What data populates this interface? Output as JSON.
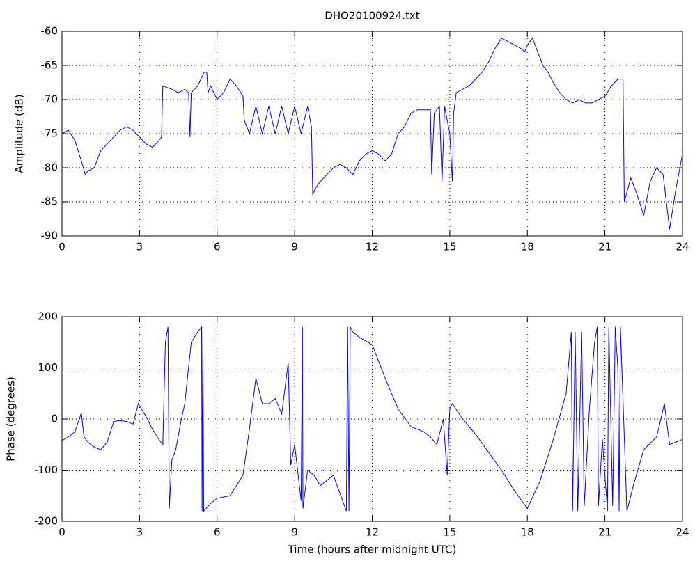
{
  "chart_data": [
    {
      "type": "line",
      "title": "DHO20100924.txt",
      "y_label": "Amplitude (dB)",
      "x": [
        0,
        0.25,
        0.5,
        0.75,
        0.9,
        1.0,
        1.25,
        1.5,
        1.75,
        2.0,
        2.25,
        2.5,
        2.75,
        3.0,
        3.25,
        3.5,
        3.75,
        3.85,
        3.9,
        4.25,
        4.5,
        4.75,
        4.9,
        4.95,
        5.0,
        5.25,
        5.5,
        5.6,
        5.65,
        5.75,
        6.0,
        6.25,
        6.5,
        6.75,
        7.0,
        7.05,
        7.25,
        7.5,
        7.75,
        8.0,
        8.25,
        8.5,
        8.75,
        9.0,
        9.25,
        9.5,
        9.65,
        9.7,
        9.8,
        10,
        10.25,
        10.5,
        10.75,
        11,
        11.25,
        11.5,
        11.75,
        12,
        12.25,
        12.5,
        12.75,
        13,
        13.25,
        13.5,
        13.75,
        14,
        14.25,
        14.3,
        14.4,
        14.6,
        14.7,
        14.8,
        15,
        15.1,
        15.15,
        15.25,
        15.5,
        15.75,
        16,
        16.25,
        16.5,
        16.75,
        17,
        17.25,
        17.5,
        17.75,
        17.9,
        18,
        18.2,
        18.4,
        18.6,
        18.8,
        19,
        19.25,
        19.5,
        19.75,
        20,
        20.25,
        20.5,
        20.75,
        21,
        21.25,
        21.5,
        21.7,
        21.75,
        22,
        22.25,
        22.5,
        22.75,
        23,
        23.25,
        23.5,
        23.75,
        24
      ],
      "series": [
        {
          "color": "#0000ff",
          "values": [
            -75,
            -74.5,
            -76,
            -79,
            -81,
            -80.5,
            -80,
            -77.5,
            -76.5,
            -75.5,
            -74.5,
            -74,
            -74.5,
            -75.5,
            -76.5,
            -77,
            -76,
            -75.5,
            -68,
            -68.5,
            -69,
            -68.5,
            -69,
            -75.5,
            -69,
            -68,
            -66,
            -66,
            -69,
            -68,
            -70,
            -69,
            -67,
            -68,
            -69.5,
            -73,
            -75,
            -71,
            -75,
            -71,
            -75,
            -71,
            -75,
            -71,
            -75,
            -71,
            -74,
            -84,
            -83,
            -82,
            -81,
            -80,
            -79.5,
            -80,
            -81,
            -79,
            -78,
            -77.5,
            -78,
            -79,
            -78,
            -75,
            -74,
            -72,
            -71.5,
            -71.5,
            -71.5,
            -81,
            -72,
            -71,
            -82,
            -71,
            -75,
            -82,
            -72,
            -69,
            -68.5,
            -68,
            -67,
            -66,
            -64.5,
            -62.5,
            -61,
            -61.5,
            -62,
            -62.5,
            -63,
            -62,
            -61,
            -63,
            -65,
            -66,
            -67.5,
            -69,
            -70,
            -70.5,
            -70,
            -70.5,
            -70.5,
            -70,
            -69.5,
            -68,
            -67,
            -67,
            -85,
            -81.5,
            -84,
            -87,
            -82,
            -80,
            -81,
            -89,
            -83,
            -78
          ]
        }
      ],
      "xlim": [
        0,
        24
      ],
      "xticks": [
        0,
        3,
        6,
        9,
        12,
        15,
        18,
        21,
        24
      ],
      "ylim": [
        -90,
        -60
      ],
      "yticks": [
        -90,
        -85,
        -80,
        -75,
        -70,
        -65,
        -60
      ],
      "grid": true
    },
    {
      "type": "line",
      "x_label": "Time (hours after midnight UTC)",
      "y_label": "Phase (degrees)",
      "x": [
        0,
        0.25,
        0.5,
        0.75,
        0.85,
        1,
        1.25,
        1.5,
        1.75,
        2,
        2.25,
        2.5,
        2.75,
        2.95,
        3.25,
        3.5,
        3.75,
        3.9,
        4.0,
        4.1,
        4.15,
        4.25,
        4.4,
        4.6,
        4.75,
        5.0,
        5.25,
        5.4,
        5.42,
        5.45,
        5.48,
        5.75,
        6,
        6.5,
        7,
        7.25,
        7.5,
        7.75,
        8,
        8.25,
        8.5,
        8.75,
        8.85,
        9.0,
        9.25,
        9.3,
        9.32,
        9.5,
        9.75,
        10,
        10.5,
        11,
        11.05,
        11.1,
        11.15,
        11.25,
        11.5,
        12,
        12.5,
        13,
        13.5,
        14,
        14.25,
        14.5,
        14.75,
        14.9,
        15,
        15.1,
        15.5,
        16,
        16.5,
        17,
        17.5,
        18,
        18.5,
        19,
        19.5,
        19.7,
        19.75,
        19.85,
        19.95,
        20.1,
        20.2,
        20.4,
        20.6,
        20.7,
        20.75,
        20.9,
        21.1,
        21.15,
        21.3,
        21.4,
        21.5,
        21.55,
        21.6,
        21.85,
        22.1,
        22.5,
        23,
        23.3,
        23.5,
        24
      ],
      "series": [
        {
          "color": "#0000ff",
          "values": [
            -42,
            -35,
            -25,
            12,
            -35,
            -45,
            -55,
            -60,
            -45,
            -5,
            -3,
            -5,
            -10,
            30,
            5,
            -20,
            -40,
            -50,
            150,
            180,
            -175,
            -80,
            -60,
            -5,
            30,
            150,
            170,
            180,
            -180,
            180,
            -180,
            -165,
            -155,
            -150,
            -110,
            -20,
            80,
            30,
            30,
            40,
            10,
            110,
            -90,
            -50,
            -160,
            180,
            -175,
            -100,
            -110,
            -130,
            -110,
            -180,
            180,
            -180,
            180,
            170,
            160,
            145,
            80,
            20,
            -15,
            -25,
            -35,
            -50,
            0,
            -110,
            20,
            30,
            0,
            -30,
            -65,
            -100,
            -140,
            -175,
            -120,
            -40,
            50,
            170,
            -180,
            170,
            -180,
            170,
            -170,
            20,
            150,
            180,
            -170,
            -40,
            -180,
            180,
            -170,
            180,
            100,
            -180,
            180,
            -180,
            -130,
            -60,
            -35,
            30,
            -50,
            -40
          ]
        }
      ],
      "xlim": [
        0,
        24
      ],
      "xticks": [
        0,
        3,
        6,
        9,
        12,
        15,
        18,
        21,
        24
      ],
      "ylim": [
        -200,
        200
      ],
      "yticks": [
        -200,
        -100,
        0,
        100,
        200
      ],
      "grid": true
    }
  ]
}
